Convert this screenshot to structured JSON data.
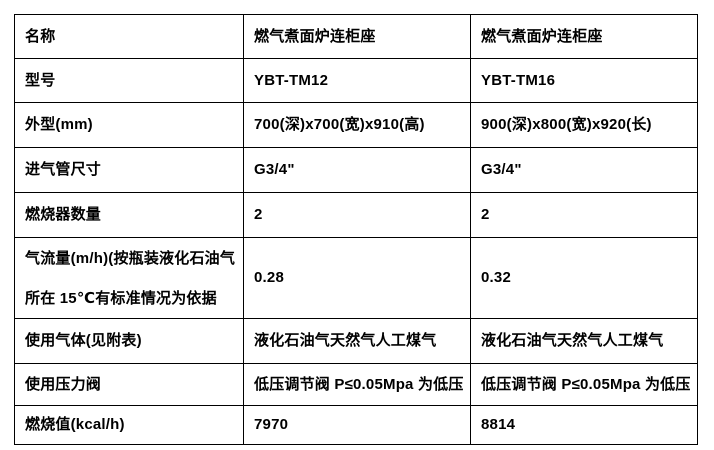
{
  "table": {
    "columns": [
      "label",
      "model_1",
      "model_2"
    ],
    "rows": [
      {
        "label": "名称",
        "v1": "燃气煮面炉连柜座",
        "v2": "燃气煮面炉连柜座"
      },
      {
        "label": "型号",
        "v1": "YBT-TM12",
        "v2": "YBT-TM16"
      },
      {
        "label": "外型(mm)",
        "v1": "700(深)x700(宽)x910(高)",
        "v2": "900(深)x800(宽)x920(长)"
      },
      {
        "label": "进气管尺寸",
        "v1": "G3/4\"",
        "v2": "G3/4\""
      },
      {
        "label": "燃烧器数量",
        "v1": "2",
        "v2": "2"
      },
      {
        "label": "气流量(m/h)(按瓶装液化石油气",
        "label2": "所在 15℃有标准情况为依据",
        "v1": "0.28",
        "v2": "0.32"
      },
      {
        "label": "使用气体(见附表)",
        "v1": "液化石油气天然气人工煤气",
        "v2": "液化石油气天然气人工煤气"
      },
      {
        "label": "使用压力阀",
        "v1": "低压调节阀 P≤0.05Mpa 为低压",
        "v2": "低压调节阀 P≤0.05Mpa 为低压"
      },
      {
        "label": "燃烧值(kcal/h)",
        "v1": "7970",
        "v2": "8814"
      }
    ],
    "colors": {
      "border": "#000000",
      "text": "#000000",
      "background": "#ffffff"
    }
  }
}
